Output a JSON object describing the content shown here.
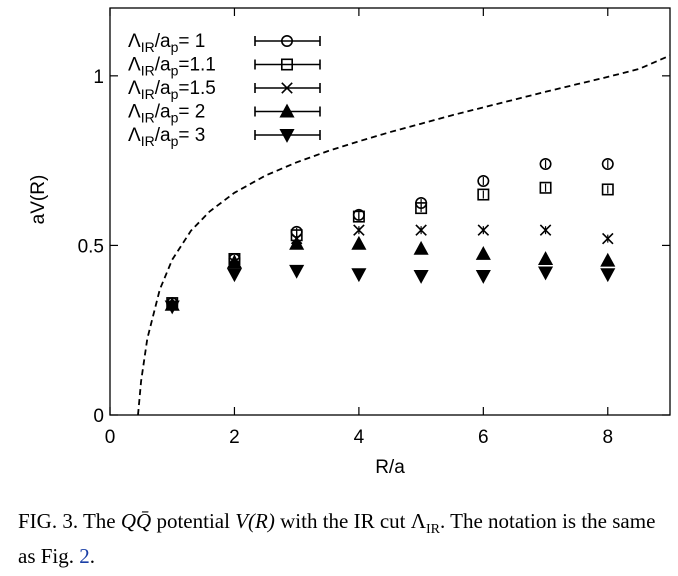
{
  "chart_data": {
    "type": "scatter",
    "xlabel": "R/a",
    "ylabel": "aV(R)",
    "xlim": [
      0,
      9
    ],
    "ylim": [
      0,
      1.2
    ],
    "xticks": [
      0,
      2,
      4,
      6,
      8
    ],
    "yticks": [
      0,
      0.5,
      1
    ],
    "xtick_labels": [
      "0",
      "2",
      "4",
      "6",
      "8"
    ],
    "ytick_labels": [
      "0",
      "0.5",
      "1"
    ],
    "grid": false,
    "legend_position": "top-left",
    "series": [
      {
        "name": "ΛIR/ap= 1",
        "marker": "circle",
        "x": [
          1,
          2,
          3,
          4,
          5,
          6,
          7,
          8
        ],
        "y": [
          0.33,
          0.46,
          0.54,
          0.59,
          0.625,
          0.69,
          0.74,
          0.74
        ]
      },
      {
        "name": "ΛIR/ap=1.1",
        "marker": "square",
        "x": [
          1,
          2,
          3,
          4,
          5,
          6,
          7,
          8
        ],
        "y": [
          0.33,
          0.46,
          0.53,
          0.585,
          0.61,
          0.65,
          0.67,
          0.665
        ]
      },
      {
        "name": "ΛIR/ap=1.5",
        "marker": "x",
        "x": [
          1,
          2,
          3,
          4,
          5,
          6,
          7,
          8
        ],
        "y": [
          0.325,
          0.45,
          0.52,
          0.545,
          0.545,
          0.545,
          0.545,
          0.52
        ]
      },
      {
        "name": "ΛIR/ap= 2",
        "marker": "triangle-up",
        "x": [
          1,
          2,
          3,
          4,
          5,
          6,
          7,
          8
        ],
        "y": [
          0.325,
          0.45,
          0.505,
          0.505,
          0.49,
          0.475,
          0.46,
          0.455
        ]
      },
      {
        "name": "ΛIR/ap= 3",
        "marker": "triangle-down",
        "x": [
          1,
          2,
          3,
          4,
          5,
          6,
          7,
          8
        ],
        "y": [
          0.32,
          0.415,
          0.425,
          0.415,
          0.41,
          0.41,
          0.42,
          0.415
        ]
      }
    ],
    "reference_curve": {
      "style": "dashed",
      "x": [
        0.45,
        0.5,
        0.6,
        0.8,
        1.0,
        1.3,
        1.6,
        2,
        2.5,
        3,
        3.5,
        4,
        4.5,
        5,
        5.5,
        6,
        6.5,
        7,
        7.5,
        8,
        8.5,
        9
      ],
      "y": [
        0.0,
        0.1,
        0.225,
        0.37,
        0.458,
        0.543,
        0.6,
        0.655,
        0.706,
        0.745,
        0.778,
        0.807,
        0.834,
        0.859,
        0.884,
        0.907,
        0.93,
        0.953,
        0.975,
        0.997,
        1.02,
        1.06
      ]
    }
  },
  "legend": {
    "entries": [
      {
        "sym": "Λ",
        "sub1": "IR",
        "mid": "/a",
        "sub2": "p",
        "tail": "=  1"
      },
      {
        "sym": "Λ",
        "sub1": "IR",
        "mid": "/a",
        "sub2": "p",
        "tail": "=1.1"
      },
      {
        "sym": "Λ",
        "sub1": "IR",
        "mid": "/a",
        "sub2": "p",
        "tail": "=1.5"
      },
      {
        "sym": "Λ",
        "sub1": "IR",
        "mid": "/a",
        "sub2": "p",
        "tail": "=  2"
      },
      {
        "sym": "Λ",
        "sub1": "IR",
        "mid": "/a",
        "sub2": "p",
        "tail": "=  3"
      }
    ]
  },
  "caption": {
    "label": "FIG. 3.",
    "text_1": "The ",
    "math_qq": "QQ̄",
    "text_2": " potential ",
    "math_v": "V(R)",
    "text_3": " with the IR cut ",
    "math_lambda": "Λ",
    "math_lambda_sub": "IR",
    "text_4": ". The notation is the same as Fig. ",
    "fig_ref": "2",
    "text_5": "."
  }
}
